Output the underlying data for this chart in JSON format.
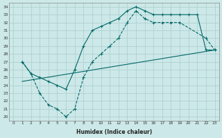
{
  "xlabel": "Humidex (Indice chaleur)",
  "bg_color": "#cce8e8",
  "line_color": "#006666",
  "grid_color": "#aacccc",
  "xlim": [
    -0.5,
    23.5
  ],
  "ylim": [
    19.5,
    34.5
  ],
  "yticks": [
    20,
    21,
    22,
    23,
    24,
    25,
    26,
    27,
    28,
    29,
    30,
    31,
    32,
    33,
    34
  ],
  "xticks": [
    0,
    1,
    2,
    3,
    4,
    5,
    6,
    7,
    8,
    9,
    10,
    11,
    12,
    13,
    14,
    15,
    16,
    17,
    18,
    19,
    20,
    21,
    22,
    23
  ],
  "series1_x": [
    1,
    2,
    3,
    4,
    5,
    6,
    7,
    8,
    9,
    10,
    11,
    12,
    13,
    14,
    15,
    16,
    17,
    18,
    19,
    20,
    21,
    22,
    23
  ],
  "series1_y": [
    27.0,
    25.5,
    25.0,
    24.5,
    24.0,
    23.5,
    26.0,
    29.0,
    31.0,
    31.5,
    32.0,
    32.5,
    33.5,
    34.0,
    33.5,
    33.0,
    33.0,
    33.0,
    33.0,
    33.0,
    33.0,
    28.5,
    28.5
  ],
  "series2_x": [
    1,
    2,
    3,
    4,
    5,
    6,
    7,
    8,
    9,
    10,
    11,
    12,
    13,
    14,
    15,
    16,
    17,
    18,
    19,
    22,
    23
  ],
  "series2_y": [
    27.0,
    25.5,
    23.0,
    21.5,
    21.0,
    20.0,
    21.0,
    25.0,
    27.0,
    28.0,
    29.0,
    30.0,
    32.0,
    33.5,
    32.5,
    32.0,
    32.0,
    32.0,
    32.0,
    30.0,
    28.5
  ],
  "series3_x": [
    1,
    23
  ],
  "series3_y": [
    24.5,
    28.5
  ]
}
